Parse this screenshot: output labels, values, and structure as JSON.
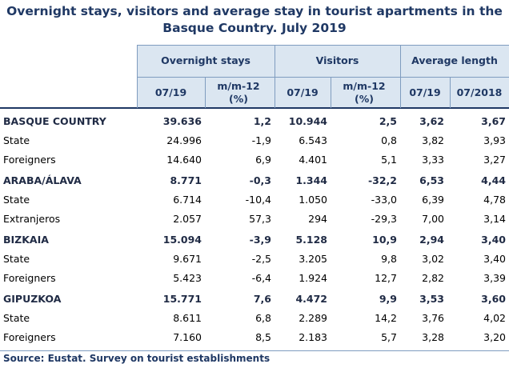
{
  "title": "Overnight stays, visitors and average stay in tourist apartments in the Basque Country. July 2019",
  "headers": {
    "group1": "Overnight stays",
    "group2": "Visitors",
    "group3": "Average length",
    "col1": "07/19",
    "col2": "m/m-12 (%)",
    "col3": "07/19",
    "col4": "m/m-12 (%)",
    "col5": "07/19",
    "col6": "07/2018"
  },
  "rows": [
    {
      "label": "BASQUE COUNTRY",
      "bold": true,
      "v": [
        "39.636",
        "1,2",
        "10.944",
        "2,5",
        "3,62",
        "3,67"
      ]
    },
    {
      "label": "State",
      "bold": false,
      "v": [
        "24.996",
        "-1,9",
        "6.543",
        "0,8",
        "3,82",
        "3,93"
      ]
    },
    {
      "label": "Foreigners",
      "bold": false,
      "v": [
        "14.640",
        "6,9",
        "4.401",
        "5,1",
        "3,33",
        "3,27"
      ]
    },
    {
      "label": "ARABA/ÁLAVA",
      "bold": true,
      "v": [
        "8.771",
        "-0,3",
        "1.344",
        "-32,2",
        "6,53",
        "4,44"
      ]
    },
    {
      "label": "State",
      "bold": false,
      "v": [
        "6.714",
        "-10,4",
        "1.050",
        "-33,0",
        "6,39",
        "4,78"
      ]
    },
    {
      "label": "Extranjeros",
      "bold": false,
      "v": [
        "2.057",
        "57,3",
        "294",
        "-29,3",
        "7,00",
        "3,14"
      ]
    },
    {
      "label": "BIZKAIA",
      "bold": true,
      "v": [
        "15.094",
        "-3,9",
        "5.128",
        "10,9",
        "2,94",
        "3,40"
      ]
    },
    {
      "label": "State",
      "bold": false,
      "v": [
        "9.671",
        "-2,5",
        "3.205",
        "9,8",
        "3,02",
        "3,40"
      ]
    },
    {
      "label": "Foreigners",
      "bold": false,
      "v": [
        "5.423",
        "-6,4",
        "1.924",
        "12,7",
        "2,82",
        "3,39"
      ]
    },
    {
      "label": "GIPUZKOA",
      "bold": true,
      "v": [
        "15.771",
        "7,6",
        "4.472",
        "9,9",
        "3,53",
        "3,60"
      ]
    },
    {
      "label": "State",
      "bold": false,
      "v": [
        "8.611",
        "6,8",
        "2.289",
        "14,2",
        "3,76",
        "4,02"
      ]
    },
    {
      "label": "Foreigners",
      "bold": false,
      "v": [
        "7.160",
        "8,5",
        "2.183",
        "5,7",
        "3,28",
        "3,20"
      ]
    }
  ],
  "source": "Source: Eustat. Survey on tourist establishments"
}
